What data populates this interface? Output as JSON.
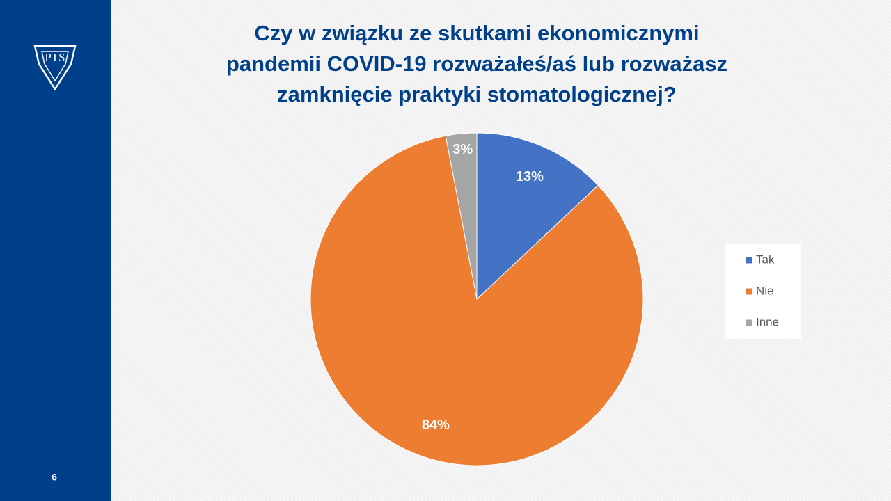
{
  "logo": "PTS",
  "slide_number": "6",
  "chart_data": {
    "type": "pie",
    "title": [
      "Czy w związku ze skutkami ekonomicznymi",
      "pandemii COVID-19 rozważałeś/aś lub rozważasz",
      "zamknięcie praktyki stomatologicznej?"
    ],
    "categories": [
      "Tak",
      "Nie",
      "Inne"
    ],
    "values": [
      13,
      84,
      3
    ],
    "value_labels": [
      "13%",
      "84%",
      "3%"
    ],
    "colors": [
      "#4472c4",
      "#ed7d31",
      "#a5a5a5"
    ],
    "legend": "right"
  }
}
